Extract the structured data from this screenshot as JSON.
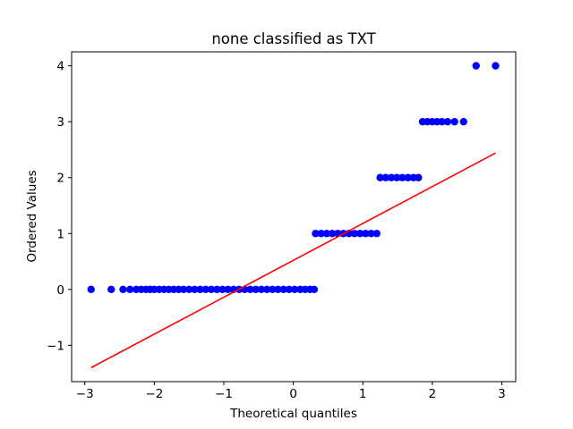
{
  "chart_data": {
    "type": "scatter",
    "title": "none classified as TXT",
    "xlabel": "Theoretical quantiles",
    "ylabel": "Ordered Values",
    "xlim": [
      -3.19,
      3.2
    ],
    "ylim": [
      -1.65,
      4.25
    ],
    "xticks": [
      -3,
      -2,
      -1,
      0,
      1,
      2,
      3
    ],
    "xtick_labels": [
      "−3",
      "−2",
      "−1",
      "0",
      "1",
      "2",
      "3"
    ],
    "yticks": [
      -1,
      0,
      1,
      2,
      3,
      4
    ],
    "ytick_labels": [
      "−1",
      "0",
      "1",
      "2",
      "3",
      "4"
    ],
    "grid": false,
    "legend": "none",
    "colors": {
      "points": "#0000ff",
      "fit_line": "#ff0000",
      "axes": "#000000"
    },
    "series": [
      {
        "kind": "points",
        "points": [
          {
            "x": -2.91,
            "y": 0
          },
          {
            "x": -2.62,
            "y": 0
          },
          {
            "x": -2.45,
            "y": 0
          },
          {
            "x": -2.35,
            "y": 0
          },
          {
            "x": -2.26,
            "y": 0
          },
          {
            "x": -2.19,
            "y": 0
          },
          {
            "x": -2.12,
            "y": 0
          },
          {
            "x": -2.06,
            "y": 0
          },
          {
            "x": -2.0,
            "y": 0
          },
          {
            "x": -1.93,
            "y": 0
          },
          {
            "x": -1.86,
            "y": 0
          },
          {
            "x": -1.79,
            "y": 0
          },
          {
            "x": -1.72,
            "y": 0
          },
          {
            "x": -1.65,
            "y": 0
          },
          {
            "x": -1.58,
            "y": 0
          },
          {
            "x": -1.5,
            "y": 0
          },
          {
            "x": -1.42,
            "y": 0
          },
          {
            "x": -1.34,
            "y": 0
          },
          {
            "x": -1.26,
            "y": 0
          },
          {
            "x": -1.18,
            "y": 0
          },
          {
            "x": -1.1,
            "y": 0
          },
          {
            "x": -1.02,
            "y": 0
          },
          {
            "x": -0.94,
            "y": 0
          },
          {
            "x": -0.86,
            "y": 0
          },
          {
            "x": -0.78,
            "y": 0
          },
          {
            "x": -0.7,
            "y": 0
          },
          {
            "x": -0.62,
            "y": 0
          },
          {
            "x": -0.54,
            "y": 0
          },
          {
            "x": -0.46,
            "y": 0
          },
          {
            "x": -0.38,
            "y": 0
          },
          {
            "x": -0.3,
            "y": 0
          },
          {
            "x": -0.22,
            "y": 0
          },
          {
            "x": -0.14,
            "y": 0
          },
          {
            "x": -0.06,
            "y": 0
          },
          {
            "x": 0.02,
            "y": 0
          },
          {
            "x": 0.1,
            "y": 0
          },
          {
            "x": 0.17,
            "y": 0
          },
          {
            "x": 0.24,
            "y": 0
          },
          {
            "x": 0.3,
            "y": 0
          },
          {
            "x": 0.32,
            "y": 1
          },
          {
            "x": 0.4,
            "y": 1
          },
          {
            "x": 0.48,
            "y": 1
          },
          {
            "x": 0.56,
            "y": 1
          },
          {
            "x": 0.64,
            "y": 1
          },
          {
            "x": 0.72,
            "y": 1
          },
          {
            "x": 0.8,
            "y": 1
          },
          {
            "x": 0.88,
            "y": 1
          },
          {
            "x": 0.96,
            "y": 1
          },
          {
            "x": 1.04,
            "y": 1
          },
          {
            "x": 1.12,
            "y": 1
          },
          {
            "x": 1.2,
            "y": 1
          },
          {
            "x": 1.25,
            "y": 2
          },
          {
            "x": 1.33,
            "y": 2
          },
          {
            "x": 1.41,
            "y": 2
          },
          {
            "x": 1.49,
            "y": 2
          },
          {
            "x": 1.57,
            "y": 2
          },
          {
            "x": 1.65,
            "y": 2
          },
          {
            "x": 1.73,
            "y": 2
          },
          {
            "x": 1.8,
            "y": 2
          },
          {
            "x": 1.86,
            "y": 3
          },
          {
            "x": 1.93,
            "y": 3
          },
          {
            "x": 2.0,
            "y": 3
          },
          {
            "x": 2.07,
            "y": 3
          },
          {
            "x": 2.14,
            "y": 3
          },
          {
            "x": 2.22,
            "y": 3
          },
          {
            "x": 2.32,
            "y": 3
          },
          {
            "x": 2.45,
            "y": 3
          },
          {
            "x": 2.63,
            "y": 4
          },
          {
            "x": 2.91,
            "y": 4
          }
        ]
      },
      {
        "kind": "fit_line",
        "points": [
          {
            "x": -2.91,
            "y": -1.4
          },
          {
            "x": 2.91,
            "y": 2.44
          }
        ]
      }
    ]
  }
}
